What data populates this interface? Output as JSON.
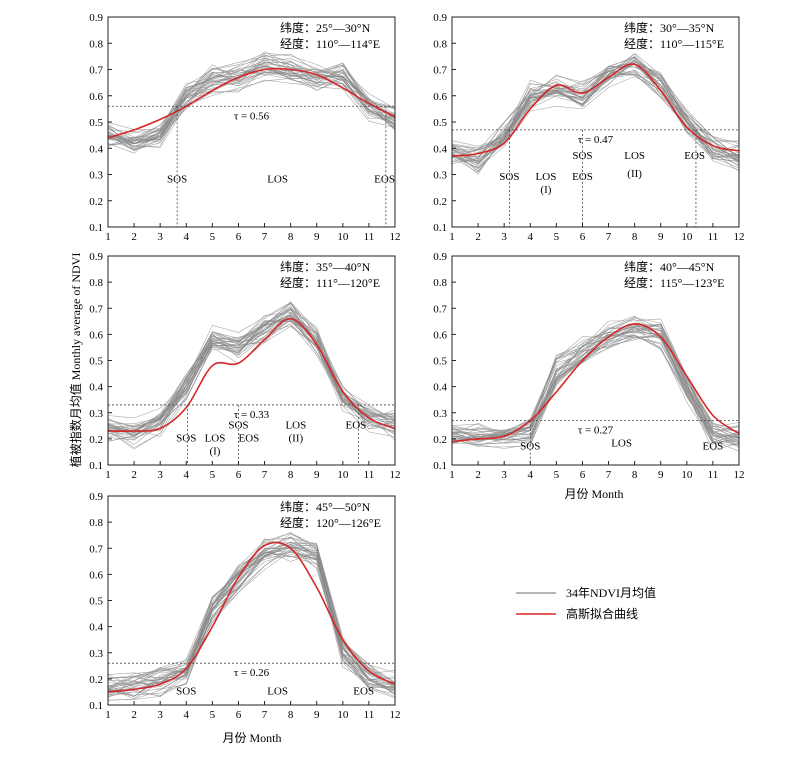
{
  "figure": {
    "ylabel": "植被指数月均值 Monthly average of NDVI",
    "xlabel": "月份 Month"
  },
  "legend": {
    "items": [
      {
        "label": "34年NDVI月均值",
        "color": "#8a8a8a"
      },
      {
        "label": "高斯拟合曲线",
        "color": "#d62728"
      }
    ]
  },
  "colors": {
    "raw": "#8a8a8a",
    "fit": "#d62728",
    "axis": "#222222"
  },
  "chart_data": [
    {
      "type": "line",
      "lat": "纬度：25°—30°N",
      "lon": "经度：110°—114°E",
      "tau_label": "τ = 0.56",
      "tau": 0.56,
      "x": [
        1,
        2,
        3,
        4,
        5,
        6,
        7,
        8,
        9,
        10,
        11,
        12
      ],
      "xlim": [
        1,
        12
      ],
      "ylim": [
        0.1,
        0.9
      ],
      "xticks": [
        "1",
        "2",
        "3",
        "4",
        "5",
        "6",
        "7",
        "8",
        "9",
        "10",
        "11",
        "12"
      ],
      "yticks": [
        "0.1",
        "0.2",
        "0.3",
        "0.4",
        "0.5",
        "0.6",
        "0.7",
        "0.8",
        "0.9"
      ],
      "fit": [
        0.44,
        0.47,
        0.51,
        0.56,
        0.62,
        0.67,
        0.7,
        0.7,
        0.68,
        0.63,
        0.57,
        0.52
      ],
      "raw_mean": [
        0.45,
        0.42,
        0.45,
        0.6,
        0.66,
        0.67,
        0.71,
        0.7,
        0.67,
        0.68,
        0.56,
        0.51
      ],
      "raw_count": 34,
      "vlines": [
        {
          "x": 3.65,
          "label": "SOS"
        },
        {
          "x": 11.65,
          "label": "EOS"
        }
      ],
      "labels": [
        {
          "text": "SOS",
          "x": 3.65,
          "y": 0.27
        },
        {
          "text": "LOS",
          "x": 7.5,
          "y": 0.27
        },
        {
          "text": "EOS",
          "x": 11.6,
          "y": 0.27
        }
      ]
    },
    {
      "type": "line",
      "lat": "纬度：30°—35°N",
      "lon": "经度：110°—115°E",
      "tau_label": "τ = 0.47",
      "tau": 0.47,
      "x": [
        1,
        2,
        3,
        4,
        5,
        6,
        7,
        8,
        9,
        10,
        11,
        12
      ],
      "xlim": [
        1,
        12
      ],
      "ylim": [
        0.1,
        0.9
      ],
      "xticks": [
        "1",
        "2",
        "3",
        "4",
        "5",
        "6",
        "7",
        "8",
        "9",
        "10",
        "11",
        "12"
      ],
      "yticks": [
        "0.1",
        "0.2",
        "0.3",
        "0.4",
        "0.5",
        "0.6",
        "0.7",
        "0.8",
        "0.9"
      ],
      "fit": [
        0.37,
        0.38,
        0.42,
        0.55,
        0.64,
        0.61,
        0.67,
        0.72,
        0.62,
        0.48,
        0.41,
        0.39
      ],
      "raw_mean": [
        0.38,
        0.36,
        0.45,
        0.6,
        0.62,
        0.6,
        0.68,
        0.72,
        0.64,
        0.5,
        0.4,
        0.37
      ],
      "raw_count": 34,
      "vlines": [
        {
          "x": 3.2,
          "label": "SOS"
        },
        {
          "x": 6.0,
          "label": "SOS EOS"
        },
        {
          "x": 10.35,
          "label": "EOS"
        }
      ],
      "labels": [
        {
          "text": "SOS",
          "x": 3.2,
          "y": 0.28
        },
        {
          "text": "LOS",
          "x": 4.6,
          "y": 0.28
        },
        {
          "text": "(I)",
          "x": 4.6,
          "y": 0.23
        },
        {
          "text": "SOS",
          "x": 6.0,
          "y": 0.36
        },
        {
          "text": "EOS",
          "x": 6.0,
          "y": 0.28
        },
        {
          "text": "LOS",
          "x": 8.0,
          "y": 0.36
        },
        {
          "text": "(II)",
          "x": 8.0,
          "y": 0.29
        },
        {
          "text": "EOS",
          "x": 10.3,
          "y": 0.36
        }
      ]
    },
    {
      "type": "line",
      "lat": "纬度：35°—40°N",
      "lon": "经度：111°—120°E",
      "tau_label": "τ = 0.33",
      "tau": 0.33,
      "x": [
        1,
        2,
        3,
        4,
        5,
        6,
        7,
        8,
        9,
        10,
        11,
        12
      ],
      "xlim": [
        1,
        12
      ],
      "ylim": [
        0.1,
        0.9
      ],
      "xticks": [
        "1",
        "2",
        "3",
        "4",
        "5",
        "6",
        "7",
        "8",
        "9",
        "10",
        "11",
        "12"
      ],
      "yticks": [
        "0.1",
        "0.2",
        "0.3",
        "0.4",
        "0.5",
        "0.6",
        "0.7",
        "0.8",
        "0.9"
      ],
      "fit": [
        0.23,
        0.23,
        0.24,
        0.32,
        0.48,
        0.49,
        0.58,
        0.66,
        0.56,
        0.38,
        0.28,
        0.24
      ],
      "raw_mean": [
        0.24,
        0.22,
        0.26,
        0.4,
        0.58,
        0.55,
        0.62,
        0.68,
        0.58,
        0.36,
        0.28,
        0.25
      ],
      "raw_count": 34,
      "vlines": [
        {
          "x": 4.05,
          "label": "SOS"
        },
        {
          "x": 6.0,
          "label": "SOS EOS"
        },
        {
          "x": 10.6,
          "label": "EOS"
        }
      ],
      "labels": [
        {
          "text": "SOS",
          "x": 4.0,
          "y": 0.19
        },
        {
          "text": "LOS",
          "x": 5.1,
          "y": 0.19
        },
        {
          "text": "(I)",
          "x": 5.1,
          "y": 0.14
        },
        {
          "text": "SOS",
          "x": 6.0,
          "y": 0.24
        },
        {
          "text": "EOS",
          "x": 6.4,
          "y": 0.19
        },
        {
          "text": "LOS",
          "x": 8.2,
          "y": 0.24
        },
        {
          "text": "(II)",
          "x": 8.2,
          "y": 0.19
        },
        {
          "text": "EOS",
          "x": 10.5,
          "y": 0.24
        }
      ]
    },
    {
      "type": "line",
      "lat": "纬度：40°—45°N",
      "lon": "经度：115°—123°E",
      "tau_label": "τ = 0.27",
      "tau": 0.27,
      "x": [
        1,
        2,
        3,
        4,
        5,
        6,
        7,
        8,
        9,
        10,
        11,
        12
      ],
      "xlim": [
        1,
        12
      ],
      "ylim": [
        0.1,
        0.9
      ],
      "xticks": [
        "1",
        "2",
        "3",
        "4",
        "5",
        "6",
        "7",
        "8",
        "9",
        "10",
        "11",
        "12"
      ],
      "yticks": [
        "0.1",
        "0.2",
        "0.3",
        "0.4",
        "0.5",
        "0.6",
        "0.7",
        "0.8",
        "0.9"
      ],
      "fit": [
        0.19,
        0.2,
        0.21,
        0.27,
        0.38,
        0.5,
        0.59,
        0.64,
        0.59,
        0.44,
        0.29,
        0.22
      ],
      "raw_mean": [
        0.21,
        0.21,
        0.22,
        0.23,
        0.46,
        0.54,
        0.6,
        0.63,
        0.6,
        0.4,
        0.22,
        0.21
      ],
      "raw_count": 34,
      "vlines": [
        {
          "x": 4.0,
          "label": "SOS"
        }
      ],
      "labels": [
        {
          "text": "SOS",
          "x": 4.0,
          "y": 0.16
        },
        {
          "text": "LOS",
          "x": 7.5,
          "y": 0.17
        },
        {
          "text": "EOS",
          "x": 11.0,
          "y": 0.16
        }
      ]
    },
    {
      "type": "line",
      "lat": "纬度：45°—50°N",
      "lon": "经度：120°—126°E",
      "tau_label": "τ = 0.26",
      "tau": 0.26,
      "x": [
        1,
        2,
        3,
        4,
        5,
        6,
        7,
        8,
        9,
        10,
        11,
        12
      ],
      "xlim": [
        1,
        12
      ],
      "ylim": [
        0.1,
        0.9
      ],
      "xticks": [
        "1",
        "2",
        "3",
        "4",
        "5",
        "6",
        "7",
        "8",
        "9",
        "10",
        "11",
        "12"
      ],
      "yticks": [
        "0.1",
        "0.2",
        "0.3",
        "0.4",
        "0.5",
        "0.6",
        "0.7",
        "0.8",
        "0.9"
      ],
      "fit": [
        0.15,
        0.16,
        0.18,
        0.24,
        0.4,
        0.59,
        0.71,
        0.7,
        0.55,
        0.35,
        0.23,
        0.18
      ],
      "raw_mean": [
        0.16,
        0.17,
        0.19,
        0.22,
        0.47,
        0.58,
        0.68,
        0.7,
        0.67,
        0.3,
        0.2,
        0.17
      ],
      "raw_count": 34,
      "vlines": [],
      "labels": [
        {
          "text": "SOS",
          "x": 4.0,
          "y": 0.14
        },
        {
          "text": "LOS",
          "x": 7.5,
          "y": 0.14
        },
        {
          "text": "EOS",
          "x": 10.8,
          "y": 0.14
        }
      ]
    }
  ]
}
